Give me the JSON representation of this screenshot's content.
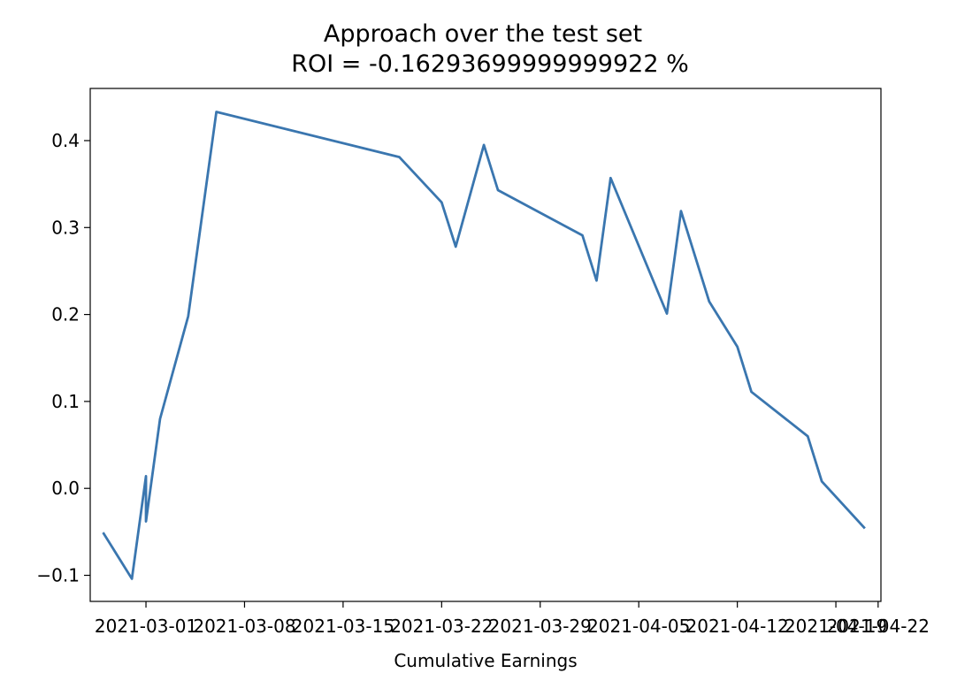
{
  "chart_data": {
    "type": "line",
    "title": "Approach over the test set",
    "subtitle": "ROI = -0.16293699999999922 %",
    "xlabel": "Cumulative Earnings",
    "ylabel": "",
    "x_tick_labels": [
      "2021-03-01",
      "2021-03-08",
      "2021-03-15",
      "2021-03-22",
      "2021-03-29",
      "2021-04-05",
      "2021-04-12",
      "2021-04-19",
      "2021-04-22"
    ],
    "x_tick_dates": [
      "2021-03-01",
      "2021-03-08",
      "2021-03-15",
      "2021-03-22",
      "2021-03-29",
      "2021-04-05",
      "2021-04-12",
      "2021-04-19",
      "2021-04-22"
    ],
    "y_ticks": [
      -0.1,
      0.0,
      0.1,
      0.2,
      0.3,
      0.4
    ],
    "y_tick_labels": [
      "−0.1",
      "0.0",
      "0.1",
      "0.2",
      "0.3",
      "0.4"
    ],
    "xlim": [
      "2021-02-24",
      "2021-04-22"
    ],
    "ylim": [
      -0.13,
      0.46
    ],
    "grid": false,
    "series": [
      {
        "color": "#3a76af",
        "points": [
          {
            "x": "2021-02-26",
            "y": -0.052
          },
          {
            "x": "2021-02-28",
            "y": -0.104
          },
          {
            "x": "2021-02-29",
            "y": 0.014
          },
          {
            "x": "2021-03-01",
            "y": -0.038
          },
          {
            "x": "2021-03-02",
            "y": 0.08
          },
          {
            "x": "2021-03-04",
            "y": 0.198
          },
          {
            "x": "2021-03-06",
            "y": 0.433
          },
          {
            "x": "2021-03-19",
            "y": 0.381
          },
          {
            "x": "2021-03-22",
            "y": 0.329
          },
          {
            "x": "2021-03-23",
            "y": 0.278
          },
          {
            "x": "2021-03-25",
            "y": 0.395
          },
          {
            "x": "2021-03-26",
            "y": 0.343
          },
          {
            "x": "2021-04-01",
            "y": 0.291
          },
          {
            "x": "2021-04-02",
            "y": 0.239
          },
          {
            "x": "2021-04-03",
            "y": 0.357
          },
          {
            "x": "2021-04-07",
            "y": 0.201
          },
          {
            "x": "2021-04-08",
            "y": 0.319
          },
          {
            "x": "2021-04-10",
            "y": 0.215
          },
          {
            "x": "2021-04-12",
            "y": 0.163
          },
          {
            "x": "2021-04-13",
            "y": 0.111
          },
          {
            "x": "2021-04-17",
            "y": 0.06
          },
          {
            "x": "2021-04-18",
            "y": 0.008
          },
          {
            "x": "2021-04-21",
            "y": -0.045
          }
        ]
      }
    ]
  }
}
